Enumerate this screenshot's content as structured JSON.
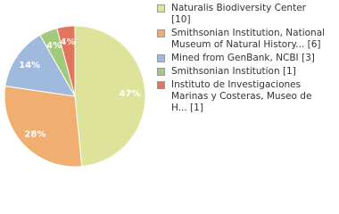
{
  "chart_data": {
    "type": "pie",
    "series": [
      {
        "name": "Naturalis Biodiversity Center [10]",
        "color": "#dde39a",
        "value": 47,
        "value_label": "47%"
      },
      {
        "name": "Smithsonian Institution, National Museum of Natural History... [6]",
        "color": "#f1ae71",
        "value": 28,
        "value_label": "28%"
      },
      {
        "name": "Mined from GenBank, NCBI [3]",
        "color": "#a0bade",
        "value": 14,
        "value_label": "14%"
      },
      {
        "name": "Smithsonian Institution [1]",
        "color": "#a3c97c",
        "value": 4,
        "value_label": "4%"
      },
      {
        "name": "Instituto de Investigaciones Marinas y Costeras, Museo de H... [1]",
        "color": "#e1765f",
        "value": 4,
        "value_label": "4%"
      }
    ]
  }
}
